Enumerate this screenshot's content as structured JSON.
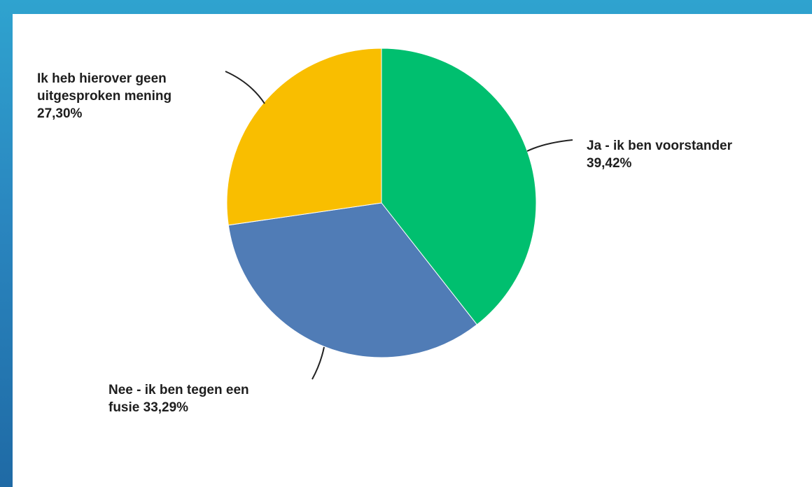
{
  "chart_data": {
    "type": "pie",
    "title": "",
    "slices": [
      {
        "name": "Ja - ik ben voorstander",
        "value": 39.42,
        "label": "39,42%",
        "color": "#00bf6f"
      },
      {
        "name": "Nee - ik ben tegen een fusie",
        "value": 33.29,
        "label": "33,29%",
        "color": "#507cb6"
      },
      {
        "name": "Ik heb hierover geen uitgesproken mening",
        "value": 27.3,
        "label": "27,30%",
        "color": "#f9be00"
      }
    ]
  },
  "labels": {
    "ja": {
      "line1": "Ja - ik ben voorstander",
      "line2": "39,42%"
    },
    "nee": {
      "line1": "Nee - ik ben tegen een",
      "line2": "fusie 33,29%"
    },
    "geen": {
      "line1": "Ik heb hierover geen",
      "line2": "uitgesproken mening",
      "line3": "27,30%"
    }
  }
}
